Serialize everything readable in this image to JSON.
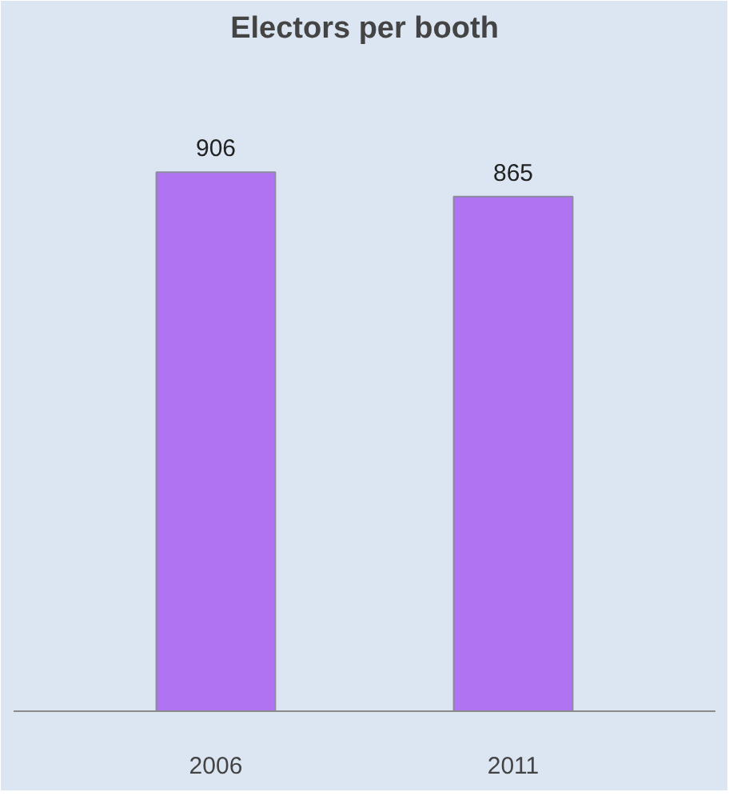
{
  "chart_data": {
    "type": "bar",
    "title": "Electors per booth",
    "categories": [
      "2006",
      "2011"
    ],
    "values": [
      906,
      865
    ],
    "color": "#b073f2",
    "data_labels": true,
    "grid": false
  }
}
